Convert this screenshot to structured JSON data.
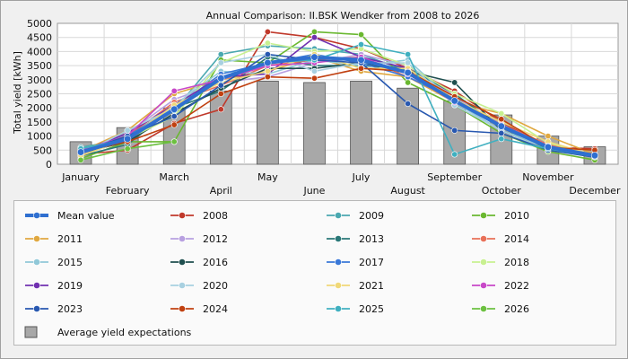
{
  "chart_data": {
    "type": "line",
    "title": "Annual Comparison: II.BSK Wendker from 2008 to 2026",
    "ylabel": "Total yield [kWh]",
    "ylim": [
      0,
      5000
    ],
    "yticks": [
      0,
      500,
      1000,
      1500,
      2000,
      2500,
      3000,
      3500,
      4000,
      4500,
      5000
    ],
    "grid": true,
    "legend_position": "bottom",
    "categories": [
      "January",
      "February",
      "March",
      "April",
      "May",
      "June",
      "July",
      "August",
      "September",
      "October",
      "November",
      "December"
    ],
    "bar_series": {
      "name": "Average yield expectations",
      "color": "#a8a8a8",
      "values": [
        800,
        1300,
        2000,
        2600,
        2950,
        2900,
        2950,
        2700,
        2250,
        1750,
        1000,
        620
      ]
    },
    "series": [
      {
        "name": "2008",
        "color": "#c0392b",
        "values": [
          350,
          500,
          1450,
          1950,
          4700,
          4500,
          4100,
          3400,
          2600,
          1500,
          600,
          550
        ]
      },
      {
        "name": "2009",
        "color": "#4aa8b0",
        "values": [
          600,
          900,
          1900,
          3900,
          4200,
          4100,
          3900,
          3300,
          2400,
          1300,
          550,
          280
        ]
      },
      {
        "name": "2010",
        "color": "#6ab830",
        "values": [
          200,
          800,
          800,
          3700,
          3600,
          4700,
          4600,
          2900,
          2100,
          1100,
          450,
          150
        ]
      },
      {
        "name": "2011",
        "color": "#e0a840",
        "values": [
          450,
          1200,
          2500,
          3000,
          3300,
          3800,
          3300,
          3100,
          2200,
          1800,
          1000,
          350
        ]
      },
      {
        "name": "2012",
        "color": "#b8a0e0",
        "values": [
          400,
          1100,
          2300,
          2900,
          3100,
          3600,
          3900,
          3500,
          2400,
          1400,
          700,
          300
        ]
      },
      {
        "name": "2013",
        "color": "#2a7878",
        "values": [
          300,
          700,
          2000,
          2600,
          3800,
          3500,
          3500,
          3400,
          2500,
          1300,
          550,
          260
        ]
      },
      {
        "name": "2014",
        "color": "#e87058",
        "values": [
          500,
          1000,
          2200,
          2800,
          3500,
          3700,
          3800,
          3100,
          2300,
          1400,
          700,
          350
        ]
      },
      {
        "name": "2015",
        "color": "#90c8d8",
        "values": [
          450,
          950,
          2100,
          3300,
          3200,
          3700,
          3500,
          3700,
          2200,
          1200,
          600,
          300
        ]
      },
      {
        "name": "2016",
        "color": "#1f4f4f",
        "values": [
          400,
          800,
          1800,
          2700,
          3400,
          3400,
          3600,
          3300,
          2900,
          1200,
          500,
          280
        ]
      },
      {
        "name": "2017",
        "color": "#3a78d8",
        "values": [
          500,
          1000,
          2000,
          3200,
          3600,
          3900,
          3600,
          3100,
          2300,
          1300,
          600,
          300
        ]
      },
      {
        "name": "2018",
        "color": "#c8f090",
        "values": [
          550,
          900,
          1700,
          3600,
          4300,
          4000,
          4100,
          3500,
          2500,
          1800,
          750,
          330
        ]
      },
      {
        "name": "2019",
        "color": "#7030b0",
        "values": [
          450,
          1100,
          2100,
          3100,
          3200,
          4500,
          3800,
          3400,
          2300,
          1300,
          650,
          300
        ]
      },
      {
        "name": "2020",
        "color": "#a8d0e0",
        "values": [
          350,
          1200,
          2000,
          3600,
          3900,
          3300,
          3600,
          3600,
          2100,
          1200,
          500,
          270
        ]
      },
      {
        "name": "2021",
        "color": "#f0d878",
        "values": [
          300,
          900,
          2100,
          2900,
          3300,
          3900,
          3400,
          3400,
          2300,
          1500,
          800,
          320
        ]
      },
      {
        "name": "2022",
        "color": "#c848c8",
        "values": [
          500,
          1000,
          2600,
          3000,
          3500,
          3600,
          3800,
          3200,
          2200,
          1400,
          650,
          330
        ]
      },
      {
        "name": "2023",
        "color": "#2858b0",
        "values": [
          450,
          1000,
          1700,
          2800,
          3900,
          3700,
          3600,
          2150,
          1200,
          1100,
          500,
          250
        ]
      },
      {
        "name": "2024",
        "color": "#c04010",
        "values": [
          450,
          800,
          1400,
          2500,
          3100,
          3050,
          3400,
          3300,
          2400,
          1600,
          600,
          500
        ]
      },
      {
        "name": "2025",
        "color": "#40b0c0",
        "values": [
          550,
          900,
          1900,
          3000,
          3600,
          3700,
          4250,
          3900,
          350,
          900,
          550,
          270
        ]
      },
      {
        "name": "2026",
        "color": "#6cc040",
        "values": [
          150,
          550,
          800,
          null,
          null,
          null,
          null,
          null,
          null,
          null,
          null,
          null
        ]
      }
    ],
    "mean_series": {
      "name": "Mean value",
      "color": "#2f6fd0",
      "values": [
        430,
        900,
        1950,
        3050,
        3600,
        3800,
        3700,
        3250,
        2250,
        1350,
        610,
        310
      ]
    },
    "legend": [
      {
        "label": "Mean value",
        "kind": "mean"
      },
      {
        "label": "2008",
        "kind": "series"
      },
      {
        "label": "2009",
        "kind": "series"
      },
      {
        "label": "2010",
        "kind": "series"
      },
      {
        "label": "2011",
        "kind": "series"
      },
      {
        "label": "2012",
        "kind": "series"
      },
      {
        "label": "2013",
        "kind": "series"
      },
      {
        "label": "2014",
        "kind": "series"
      },
      {
        "label": "2015",
        "kind": "series"
      },
      {
        "label": "2016",
        "kind": "series"
      },
      {
        "label": "2017",
        "kind": "series"
      },
      {
        "label": "2018",
        "kind": "series"
      },
      {
        "label": "2019",
        "kind": "series"
      },
      {
        "label": "2020",
        "kind": "series"
      },
      {
        "label": "2021",
        "kind": "series"
      },
      {
        "label": "2022",
        "kind": "series"
      },
      {
        "label": "2023",
        "kind": "series"
      },
      {
        "label": "2024",
        "kind": "series"
      },
      {
        "label": "2025",
        "kind": "series"
      },
      {
        "label": "2026",
        "kind": "series"
      },
      {
        "label": "Average yield expectations",
        "kind": "bar"
      }
    ]
  }
}
